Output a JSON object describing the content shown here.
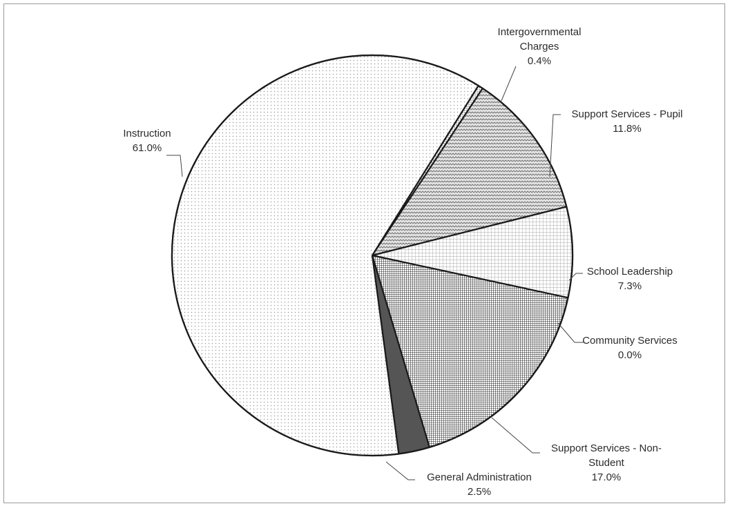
{
  "chart_data": {
    "type": "pie",
    "title": "",
    "slices": [
      {
        "label": [
          "Intergovernmental",
          "Charges"
        ],
        "value": 0.4,
        "value_label": "0.4%",
        "pattern": "dots-dense",
        "color": "#ffffff"
      },
      {
        "label": [
          "Support Services - Pupil"
        ],
        "value": 11.8,
        "value_label": "11.8%",
        "pattern": "wavy",
        "color": "#d9d9d9"
      },
      {
        "label": [
          "School Leadership"
        ],
        "value": 7.3,
        "value_label": "7.3%",
        "pattern": "grid",
        "color": "#ffffff"
      },
      {
        "label": [
          "Community Services"
        ],
        "value": 0.0,
        "value_label": "0.0%",
        "pattern": "none",
        "color": "#ffffff"
      },
      {
        "label": [
          "Support Services - Non-",
          "Student"
        ],
        "value": 17.0,
        "value_label": "17.0%",
        "pattern": "dense-grid",
        "color": "#8c8c8c"
      },
      {
        "label": [
          "General Administration"
        ],
        "value": 2.5,
        "value_label": "2.5%",
        "pattern": "solid",
        "color": "#555555"
      },
      {
        "label": [
          "Instruction"
        ],
        "value": 61.0,
        "value_label": "61.0%",
        "pattern": "dots",
        "color": "#f2f2f2"
      }
    ],
    "start_angle_deg": 32,
    "direction": "clockwise",
    "legend": "none",
    "data_labels": "outside-with-leaders"
  }
}
